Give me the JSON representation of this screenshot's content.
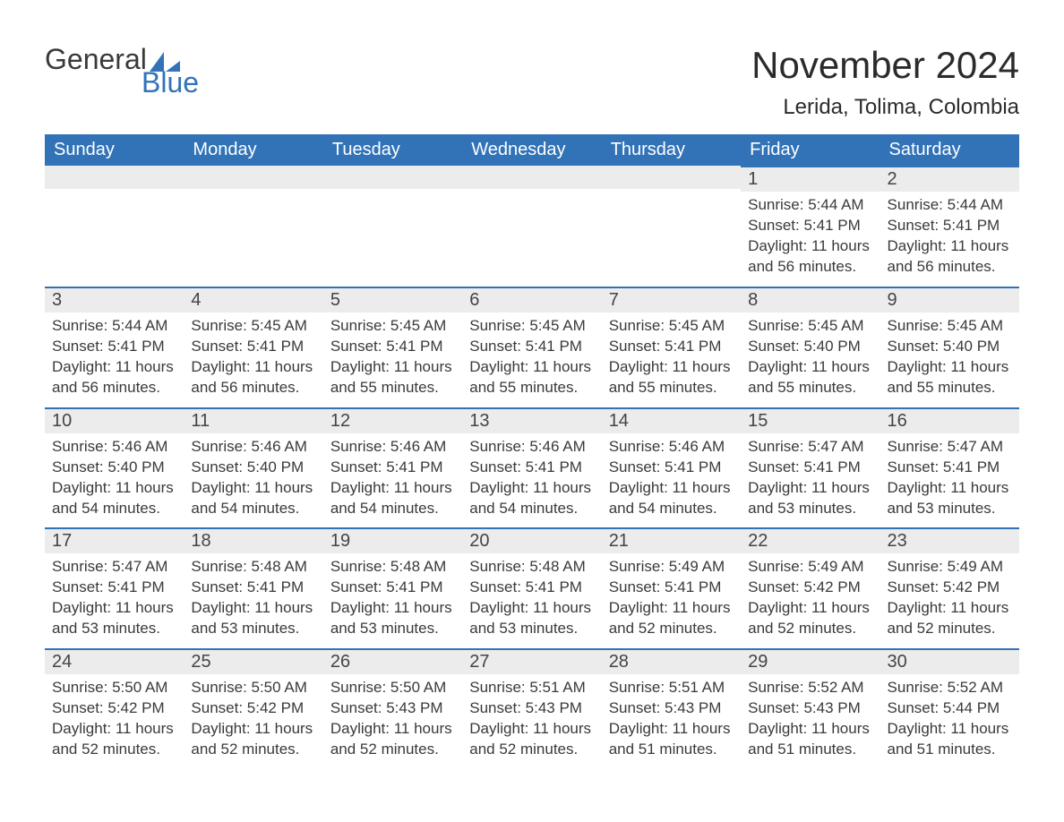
{
  "logo": {
    "word1": "General",
    "word2": "Blue"
  },
  "title": "November 2024",
  "location": "Lerida, Tolima, Colombia",
  "colors": {
    "header_bg": "#3273b8",
    "header_text": "#ffffff",
    "daynum_bg": "#ececec",
    "daynum_border": "#3273b8",
    "body_text": "#3a3a3a",
    "title_text": "#2b2b2b",
    "logo_gray": "#3a3a3a",
    "logo_blue": "#3273b8"
  },
  "weekdays": [
    "Sunday",
    "Monday",
    "Tuesday",
    "Wednesday",
    "Thursday",
    "Friday",
    "Saturday"
  ],
  "weeks": [
    [
      null,
      null,
      null,
      null,
      null,
      {
        "n": "1",
        "sr": "5:44 AM",
        "ss": "5:41 PM",
        "dl": "11 hours and 56 minutes."
      },
      {
        "n": "2",
        "sr": "5:44 AM",
        "ss": "5:41 PM",
        "dl": "11 hours and 56 minutes."
      }
    ],
    [
      {
        "n": "3",
        "sr": "5:44 AM",
        "ss": "5:41 PM",
        "dl": "11 hours and 56 minutes."
      },
      {
        "n": "4",
        "sr": "5:45 AM",
        "ss": "5:41 PM",
        "dl": "11 hours and 56 minutes."
      },
      {
        "n": "5",
        "sr": "5:45 AM",
        "ss": "5:41 PM",
        "dl": "11 hours and 55 minutes."
      },
      {
        "n": "6",
        "sr": "5:45 AM",
        "ss": "5:41 PM",
        "dl": "11 hours and 55 minutes."
      },
      {
        "n": "7",
        "sr": "5:45 AM",
        "ss": "5:41 PM",
        "dl": "11 hours and 55 minutes."
      },
      {
        "n": "8",
        "sr": "5:45 AM",
        "ss": "5:40 PM",
        "dl": "11 hours and 55 minutes."
      },
      {
        "n": "9",
        "sr": "5:45 AM",
        "ss": "5:40 PM",
        "dl": "11 hours and 55 minutes."
      }
    ],
    [
      {
        "n": "10",
        "sr": "5:46 AM",
        "ss": "5:40 PM",
        "dl": "11 hours and 54 minutes."
      },
      {
        "n": "11",
        "sr": "5:46 AM",
        "ss": "5:40 PM",
        "dl": "11 hours and 54 minutes."
      },
      {
        "n": "12",
        "sr": "5:46 AM",
        "ss": "5:41 PM",
        "dl": "11 hours and 54 minutes."
      },
      {
        "n": "13",
        "sr": "5:46 AM",
        "ss": "5:41 PM",
        "dl": "11 hours and 54 minutes."
      },
      {
        "n": "14",
        "sr": "5:46 AM",
        "ss": "5:41 PM",
        "dl": "11 hours and 54 minutes."
      },
      {
        "n": "15",
        "sr": "5:47 AM",
        "ss": "5:41 PM",
        "dl": "11 hours and 53 minutes."
      },
      {
        "n": "16",
        "sr": "5:47 AM",
        "ss": "5:41 PM",
        "dl": "11 hours and 53 minutes."
      }
    ],
    [
      {
        "n": "17",
        "sr": "5:47 AM",
        "ss": "5:41 PM",
        "dl": "11 hours and 53 minutes."
      },
      {
        "n": "18",
        "sr": "5:48 AM",
        "ss": "5:41 PM",
        "dl": "11 hours and 53 minutes."
      },
      {
        "n": "19",
        "sr": "5:48 AM",
        "ss": "5:41 PM",
        "dl": "11 hours and 53 minutes."
      },
      {
        "n": "20",
        "sr": "5:48 AM",
        "ss": "5:41 PM",
        "dl": "11 hours and 53 minutes."
      },
      {
        "n": "21",
        "sr": "5:49 AM",
        "ss": "5:41 PM",
        "dl": "11 hours and 52 minutes."
      },
      {
        "n": "22",
        "sr": "5:49 AM",
        "ss": "5:42 PM",
        "dl": "11 hours and 52 minutes."
      },
      {
        "n": "23",
        "sr": "5:49 AM",
        "ss": "5:42 PM",
        "dl": "11 hours and 52 minutes."
      }
    ],
    [
      {
        "n": "24",
        "sr": "5:50 AM",
        "ss": "5:42 PM",
        "dl": "11 hours and 52 minutes."
      },
      {
        "n": "25",
        "sr": "5:50 AM",
        "ss": "5:42 PM",
        "dl": "11 hours and 52 minutes."
      },
      {
        "n": "26",
        "sr": "5:50 AM",
        "ss": "5:43 PM",
        "dl": "11 hours and 52 minutes."
      },
      {
        "n": "27",
        "sr": "5:51 AM",
        "ss": "5:43 PM",
        "dl": "11 hours and 52 minutes."
      },
      {
        "n": "28",
        "sr": "5:51 AM",
        "ss": "5:43 PM",
        "dl": "11 hours and 51 minutes."
      },
      {
        "n": "29",
        "sr": "5:52 AM",
        "ss": "5:43 PM",
        "dl": "11 hours and 51 minutes."
      },
      {
        "n": "30",
        "sr": "5:52 AM",
        "ss": "5:44 PM",
        "dl": "11 hours and 51 minutes."
      }
    ]
  ],
  "labels": {
    "sunrise": "Sunrise: ",
    "sunset": "Sunset: ",
    "daylight": "Daylight: "
  }
}
